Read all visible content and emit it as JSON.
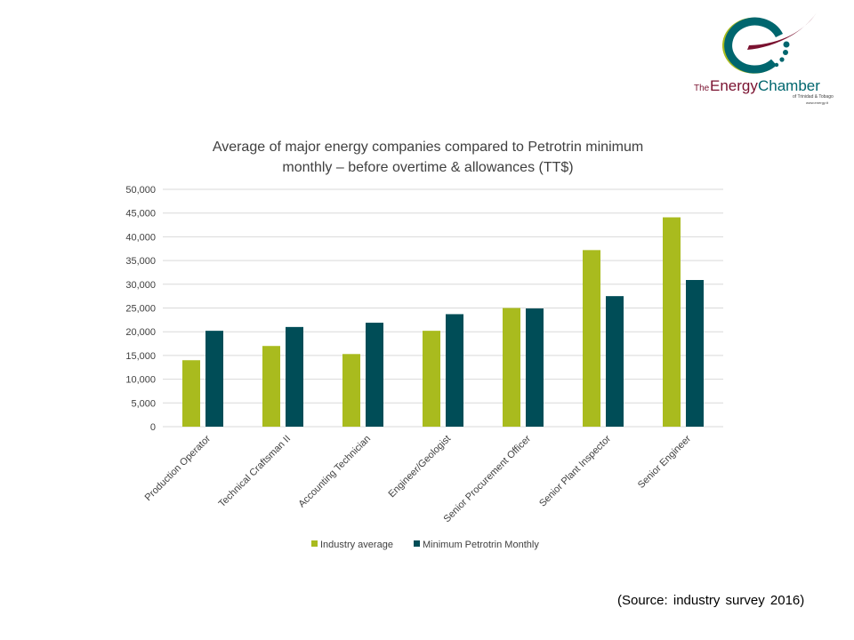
{
  "logo": {
    "text_the": "The",
    "text_energy": "Energy",
    "text_chamber": "Chamber",
    "subtitle": "of Trinidad & Tobago",
    "url": "www.energy.tt"
  },
  "colors": {
    "industry": "#a9bb1e",
    "petrotrin": "#004d57",
    "grid": "#d9d9d9",
    "axis_text": "#404040",
    "title_text": "#404040",
    "logo_teal": "#00666e",
    "logo_green": "#a9bb1e",
    "logo_maroon": "#7a1230"
  },
  "chart_data": {
    "type": "bar",
    "title_line1": "Average of major energy companies compared to Petrotrin minimum",
    "title_line2": "monthly – before overtime & allowances (TT$)",
    "categories": [
      "Production Operator",
      "Technical Craftsman II",
      "Accounting Technician",
      "Engineer/Geologist",
      "Senior Procurement Officer",
      "Senior Plant Inspector",
      "Senior Engineer"
    ],
    "series": [
      {
        "name": "Industry average",
        "values": [
          14000,
          17000,
          15300,
          20200,
          25000,
          37200,
          44100
        ]
      },
      {
        "name": "Minimum Petrotrin Monthly",
        "values": [
          20200,
          21000,
          21900,
          23700,
          24900,
          27500,
          30900
        ]
      }
    ],
    "ylim": [
      0,
      50000
    ],
    "yticks": [
      0,
      5000,
      10000,
      15000,
      20000,
      25000,
      30000,
      35000,
      40000,
      45000,
      50000
    ],
    "ytick_labels": [
      "0",
      "5,000",
      "10,000",
      "15,000",
      "20,000",
      "25,000",
      "30,000",
      "35,000",
      "40,000",
      "45,000",
      "50,000"
    ],
    "grid": true,
    "legend_position": "bottom"
  },
  "source_note": "(Source: industry survey 2016)"
}
